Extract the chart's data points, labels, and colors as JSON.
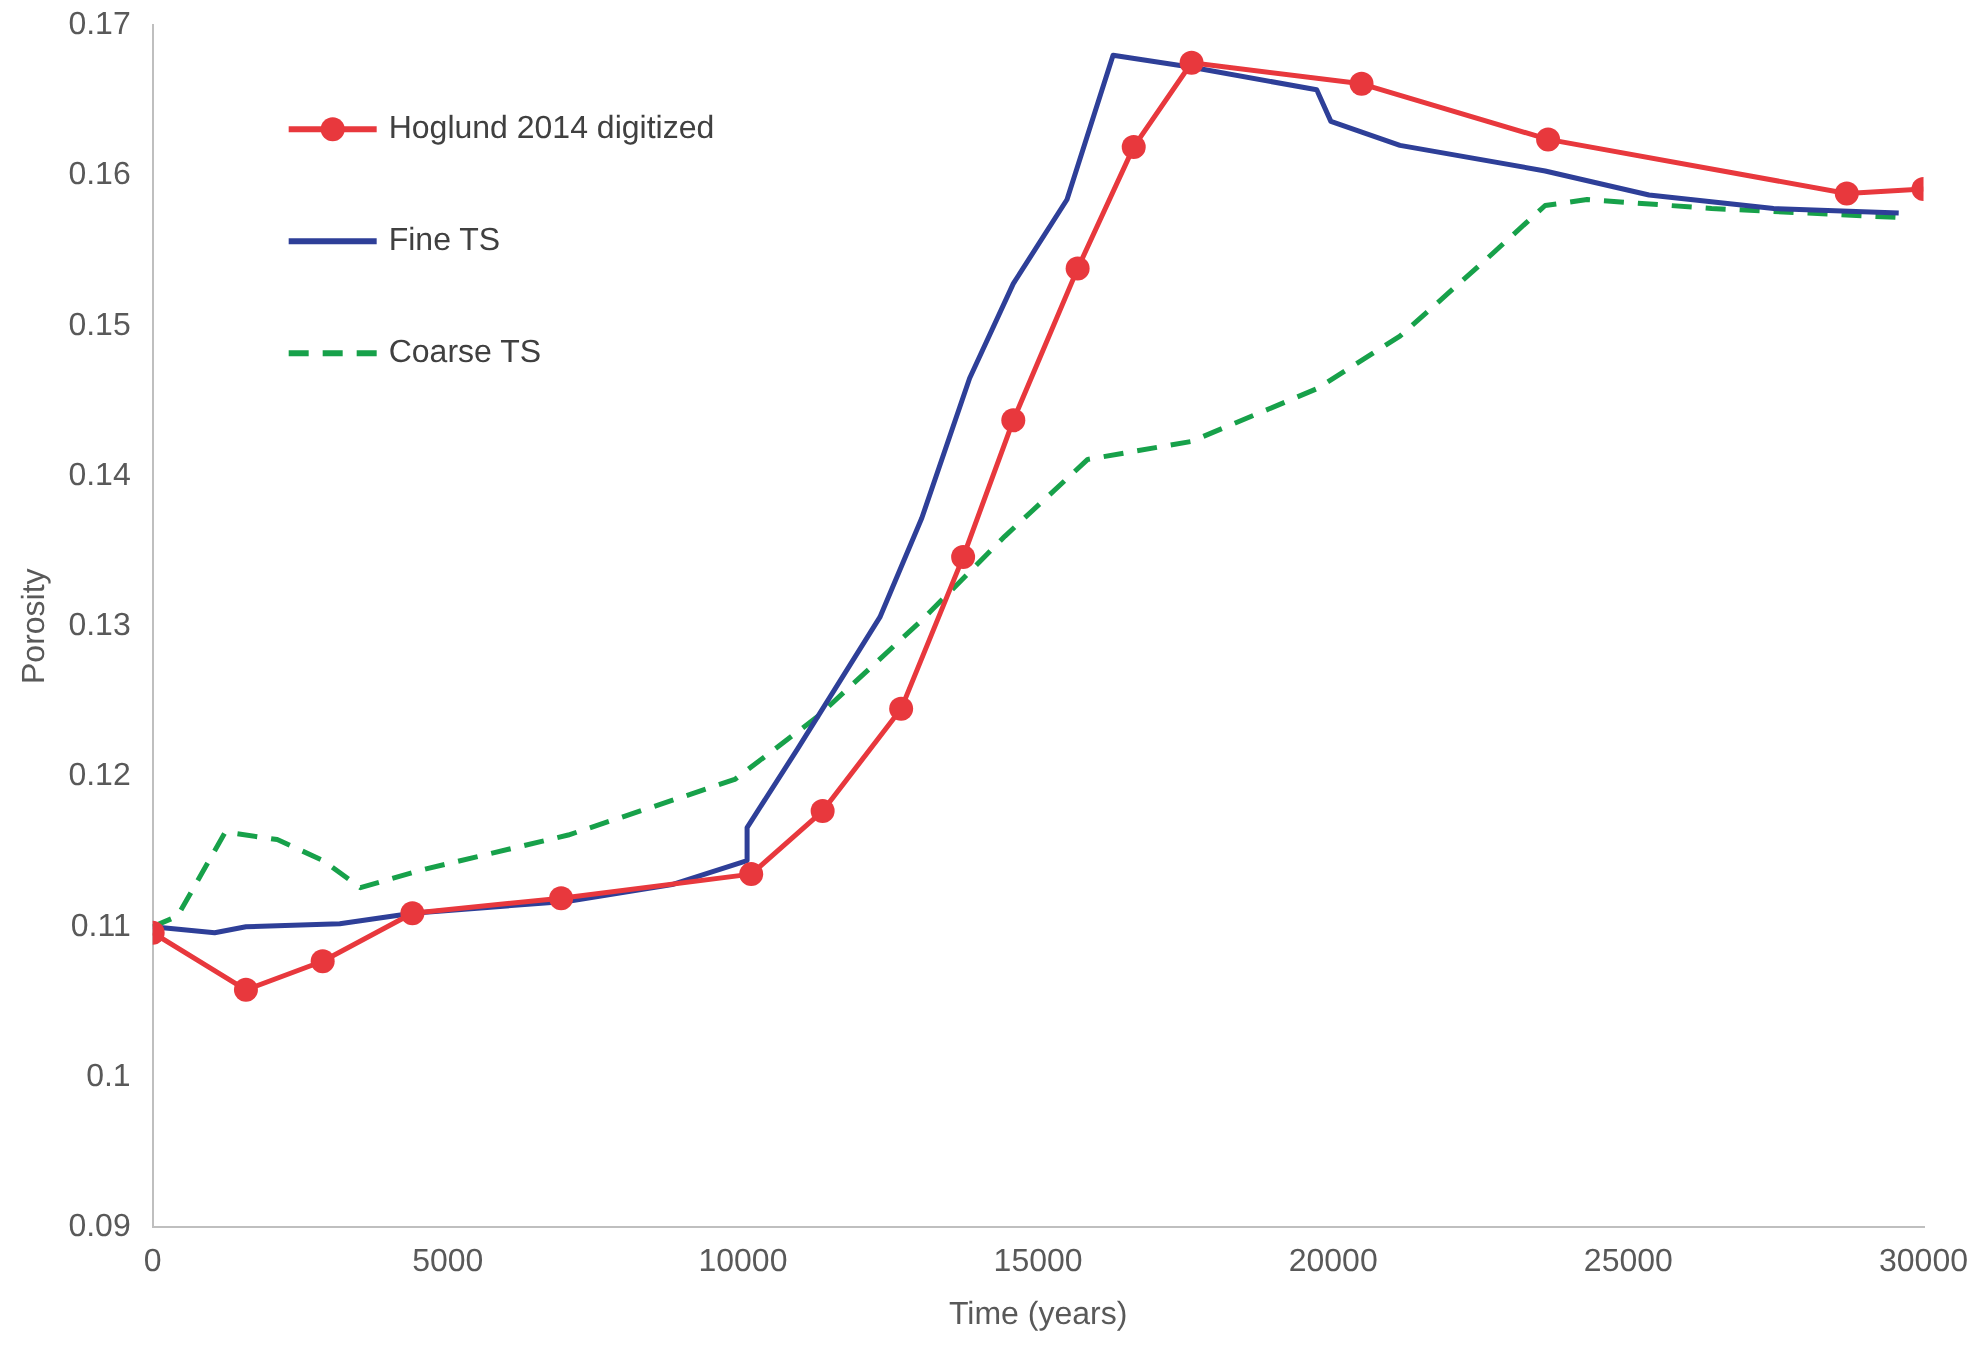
{
  "chart_data": {
    "type": "line",
    "xlabel": "Time (years)",
    "ylabel": "Porosity",
    "xlim": [
      0,
      30000
    ],
    "xticks": [
      0,
      5000,
      10000,
      15000,
      20000,
      25000,
      30000
    ],
    "ylim": [
      0.09,
      0.17
    ],
    "yticks": [
      0.09,
      0.1,
      0.11,
      0.12,
      0.13,
      0.14,
      0.15,
      0.16,
      0.17
    ],
    "grid": false,
    "legend": "top left",
    "series": [
      {
        "name": "Hoglund 2014 digitized",
        "color": "#e8383d",
        "marker": "circle",
        "line_style": "solid",
        "x": [
          0,
          1580,
          2880,
          4400,
          6920,
          10140,
          11350,
          12680,
          13730,
          14580,
          15670,
          16620,
          17600,
          20480,
          23640,
          28700,
          30000
        ],
        "values": [
          0.1096,
          0.1058,
          0.1077,
          0.1109,
          0.1119,
          0.1135,
          0.1177,
          0.1245,
          0.1346,
          0.1437,
          0.1538,
          0.1619,
          0.1675,
          0.1661,
          0.1624,
          0.1588,
          0.1591
        ]
      },
      {
        "name": "Fine TS",
        "color": "#2e3f98",
        "marker": "none",
        "line_style": "solid",
        "x": [
          0,
          1050,
          1580,
          3170,
          4400,
          7040,
          8800,
          10070,
          10070,
          10920,
          12320,
          13030,
          13840,
          14580,
          15490,
          16270,
          17600,
          19720,
          19960,
          21130,
          23590,
          25350,
          27460,
          29580
        ],
        "values": [
          0.11,
          0.1096,
          0.11,
          0.1102,
          0.1109,
          0.1117,
          0.1128,
          0.1144,
          0.1166,
          0.1218,
          0.1306,
          0.1372,
          0.1465,
          0.1528,
          0.1584,
          0.168,
          0.1672,
          0.1657,
          0.1636,
          0.162,
          0.1603,
          0.1587,
          0.1578,
          0.1575
        ]
      },
      {
        "name": "Coarse TS",
        "color": "#17a14a",
        "marker": "none",
        "line_style": "dashed",
        "x": [
          0,
          420,
          1230,
          2110,
          2890,
          3520,
          4580,
          7040,
          9860,
          11270,
          13030,
          14440,
          15840,
          17600,
          19720,
          21130,
          22530,
          23590,
          24300,
          26410,
          29580
        ],
        "values": [
          0.11,
          0.1107,
          0.1163,
          0.1158,
          0.1144,
          0.1126,
          0.1138,
          0.1161,
          0.1198,
          0.124,
          0.1304,
          0.136,
          0.1411,
          0.1423,
          0.1458,
          0.1493,
          0.1542,
          0.158,
          0.1584,
          0.1578,
          0.1572
        ]
      }
    ]
  }
}
